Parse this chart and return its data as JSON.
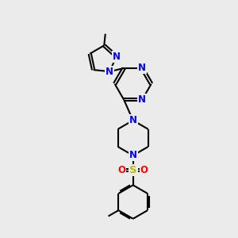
{
  "background_color": "#ebebeb",
  "bond_color": "#000000",
  "N_color": "#0000ff",
  "S_color": "#bbbb00",
  "O_color": "#ff0000",
  "line_width": 1.5,
  "font_size": 8.5,
  "fig_size": [
    3.0,
    3.0
  ],
  "dpi": 100,
  "xlim": [
    0,
    10
  ],
  "ylim": [
    0,
    10
  ]
}
